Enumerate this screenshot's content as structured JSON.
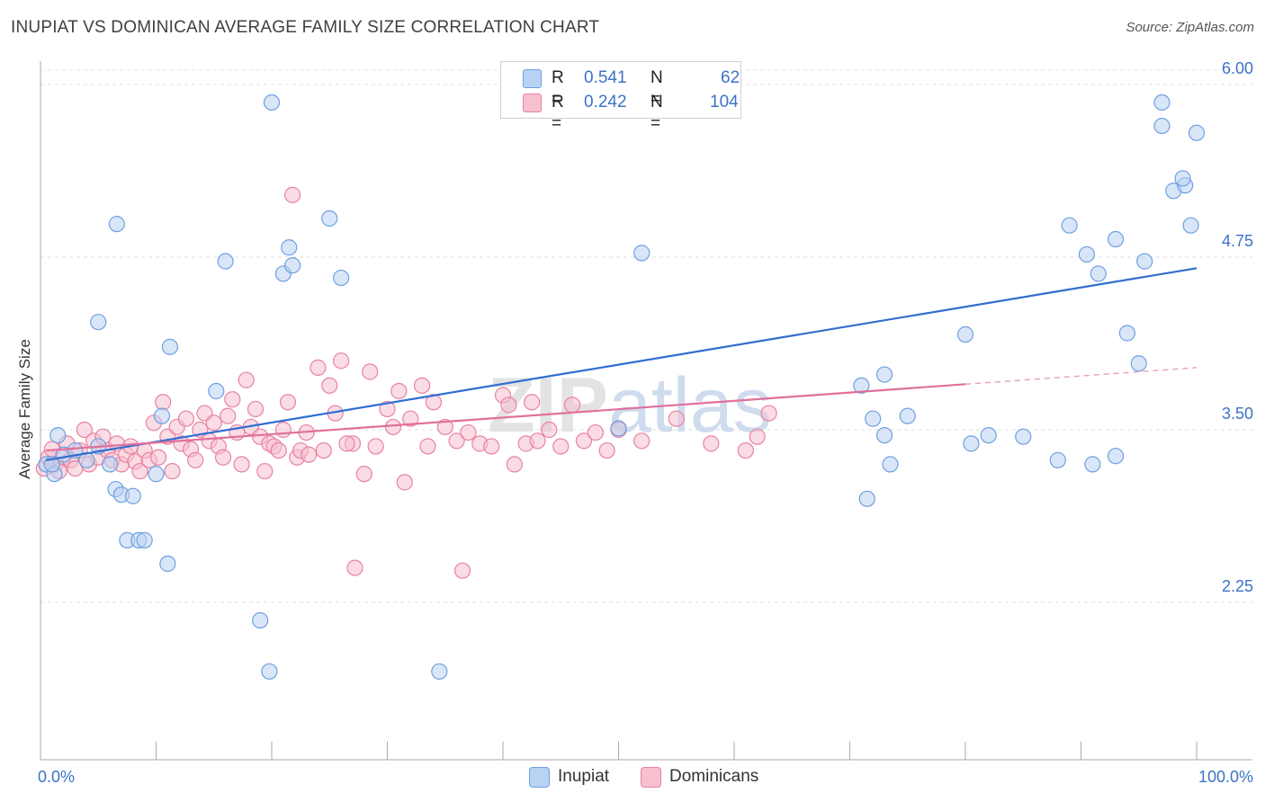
{
  "title": "INUPIAT VS DOMINICAN AVERAGE FAMILY SIZE CORRELATION CHART",
  "source": "Source: ZipAtlas.com",
  "watermark": "ZIPatlas",
  "legend": {
    "row1": {
      "r_label": "R =",
      "r_value": "0.541",
      "n_label": "N =",
      "n_value": "62"
    },
    "row2": {
      "r_label": "R =",
      "r_value": "0.242",
      "n_label": "N =",
      "n_value": "104"
    }
  },
  "chart_data": {
    "type": "scatter",
    "ylabel": "Average Family Size",
    "xlim": [
      0,
      100
    ],
    "ylim": [
      1.1,
      6.1
    ],
    "x_tick_labels": [
      "0.0%",
      "100.0%"
    ],
    "y_ticks": [
      2.25,
      3.5,
      4.75,
      6.0
    ],
    "y_tick_labels": [
      "2.25",
      "3.50",
      "4.75",
      "6.00"
    ],
    "grid": "horizontal dashed",
    "legend_placement": "top-center",
    "series": [
      {
        "name": "Inupiat",
        "color": "#6fa0e0",
        "fill": "#b9d2f3",
        "trend": {
          "x0": 0.5,
          "y0": 3.28,
          "x1": 100,
          "y1": 4.67
        },
        "x": [
          0.5,
          1.2,
          1.5,
          2.0,
          3.0,
          4.0,
          5.0,
          5.0,
          6.0,
          6.5,
          6.6,
          7.0,
          7.5,
          8.0,
          8.5,
          9.0,
          10.0,
          10.5,
          11.0,
          11.2,
          15.2,
          16.0,
          19.0,
          20.0,
          21.0,
          21.5,
          21.8,
          25.0,
          26.0,
          34.5,
          50.0,
          52.0,
          71.0,
          72.0,
          73.0,
          75.0,
          80.0,
          88.0,
          91.0,
          93.0,
          94.0,
          95.0,
          97.0,
          98.0,
          99.0,
          100.0,
          99.5,
          98.8,
          97.0,
          95.5,
          93.0,
          91.5,
          90.5,
          89.0,
          85.0,
          82.0,
          80.5,
          73.0,
          71.5,
          73.5,
          19.8,
          1.0
        ],
        "y": [
          3.25,
          3.18,
          3.46,
          3.32,
          3.35,
          3.28,
          4.28,
          3.38,
          3.25,
          3.07,
          4.99,
          3.03,
          2.7,
          3.02,
          2.7,
          2.7,
          3.18,
          3.6,
          2.53,
          4.1,
          3.78,
          4.72,
          2.12,
          5.87,
          4.63,
          4.82,
          4.69,
          5.03,
          4.6,
          1.75,
          3.51,
          4.78,
          3.82,
          3.58,
          3.9,
          3.6,
          4.19,
          3.28,
          3.25,
          3.31,
          4.2,
          3.98,
          5.7,
          5.23,
          5.27,
          5.65,
          4.98,
          5.32,
          5.87,
          4.72,
          4.88,
          4.63,
          4.77,
          4.98,
          3.45,
          3.46,
          3.4,
          3.46,
          3.0,
          3.25,
          1.75,
          3.25
        ]
      },
      {
        "name": "Dominicans",
        "color": "#e8829f",
        "fill": "#f6c0cf",
        "trend": {
          "x0": 0.5,
          "y0": 3.35,
          "x1": 80,
          "y1": 3.83
        },
        "trend_ext": {
          "x0": 80,
          "y0": 3.83,
          "x1": 100,
          "y1": 3.95
        },
        "x": [
          0.3,
          0.7,
          1.0,
          1.3,
          1.6,
          2.0,
          2.3,
          2.6,
          3.0,
          3.4,
          3.8,
          4.2,
          4.6,
          5.0,
          5.4,
          5.8,
          6.2,
          6.6,
          7.0,
          7.4,
          7.8,
          8.2,
          8.6,
          9.0,
          9.4,
          9.8,
          10.2,
          10.6,
          11.0,
          11.4,
          11.8,
          12.2,
          12.6,
          13.0,
          13.4,
          13.8,
          14.2,
          14.6,
          15.0,
          15.4,
          15.8,
          16.2,
          16.6,
          17.0,
          17.4,
          17.8,
          18.2,
          18.6,
          19.0,
          19.4,
          19.8,
          20.2,
          20.6,
          21.0,
          21.4,
          21.8,
          22.2,
          23.0,
          24.0,
          25.0,
          26.0,
          27.0,
          28.0,
          29.0,
          30.0,
          31.0,
          32.0,
          33.0,
          34.0,
          35.0,
          36.0,
          37.0,
          38.0,
          39.0,
          40.0,
          41.0,
          42.0,
          43.0,
          44.0,
          45.0,
          46.0,
          47.0,
          48.0,
          49.0,
          50.0,
          52.0,
          55.0,
          58.0,
          61.0,
          62.0,
          63.0,
          22.5,
          23.2,
          24.5,
          25.5,
          26.5,
          27.2,
          28.5,
          30.5,
          31.5,
          33.5,
          36.5,
          40.5,
          42.5
        ],
        "y": [
          3.22,
          3.3,
          3.36,
          3.25,
          3.2,
          3.3,
          3.4,
          3.28,
          3.22,
          3.35,
          3.5,
          3.25,
          3.42,
          3.3,
          3.45,
          3.35,
          3.28,
          3.4,
          3.25,
          3.32,
          3.38,
          3.27,
          3.2,
          3.35,
          3.28,
          3.55,
          3.3,
          3.7,
          3.45,
          3.2,
          3.52,
          3.4,
          3.58,
          3.36,
          3.28,
          3.5,
          3.62,
          3.42,
          3.55,
          3.38,
          3.3,
          3.6,
          3.72,
          3.48,
          3.25,
          3.86,
          3.52,
          3.65,
          3.45,
          3.2,
          3.4,
          3.38,
          3.35,
          3.5,
          3.7,
          5.2,
          3.3,
          3.48,
          3.95,
          3.82,
          4.0,
          3.4,
          3.18,
          3.38,
          3.65,
          3.78,
          3.58,
          3.82,
          3.7,
          3.52,
          3.42,
          3.48,
          3.4,
          3.38,
          3.75,
          3.25,
          3.4,
          3.42,
          3.5,
          3.38,
          3.68,
          3.42,
          3.48,
          3.35,
          3.5,
          3.42,
          3.58,
          3.4,
          3.35,
          3.45,
          3.62,
          3.35,
          3.32,
          3.35,
          3.62,
          3.4,
          2.5,
          3.92,
          3.52,
          3.12,
          3.38,
          2.48,
          3.68,
          3.7
        ]
      }
    ]
  },
  "bottom_legend": {
    "item1": "Inupiat",
    "item2": "Dominicans"
  }
}
